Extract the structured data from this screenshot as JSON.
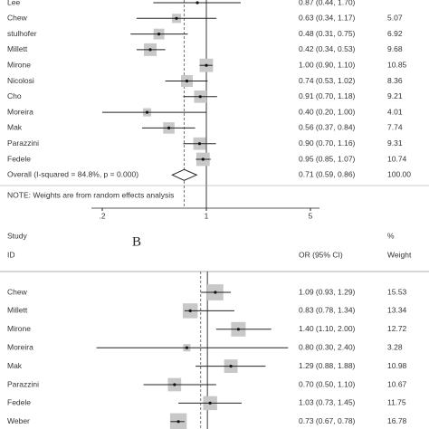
{
  "chart_data": [
    {
      "type": "forest",
      "categories": [
        "Lee",
        "Chew",
        "stulhofer",
        "Millett",
        "Mirone",
        "Nicolosi",
        "Cho",
        "Moreira",
        "Mak",
        "Parazzini",
        "Fedele"
      ],
      "values": [
        0.87,
        0.63,
        0.48,
        0.42,
        1.0,
        0.74,
        0.91,
        0.4,
        0.56,
        0.9,
        0.95
      ],
      "lower": [
        0.44,
        0.34,
        0.31,
        0.34,
        0.9,
        0.53,
        0.7,
        0.2,
        0.37,
        0.7,
        0.85
      ],
      "upper": [
        1.7,
        1.17,
        0.75,
        0.53,
        1.1,
        1.02,
        1.18,
        1.0,
        0.84,
        1.16,
        1.07
      ],
      "value_labels": [
        "0.87 (0.44, 1.70)",
        "0.63 (0.34, 1.17)",
        "0.48 (0.31, 0.75)",
        "0.42 (0.34, 0.53)",
        "1.00 (0.90, 1.10)",
        "0.74 (0.53, 1.02)",
        "0.91 (0.70, 1.18)",
        "0.40 (0.20, 1.00)",
        "0.56 (0.37, 0.84)",
        "0.90 (0.70, 1.16)",
        "0.95 (0.85, 1.07)"
      ],
      "weights": [
        null,
        5.07,
        6.92,
        9.68,
        10.85,
        8.36,
        9.21,
        4.01,
        7.74,
        9.31,
        10.74
      ],
      "overall": {
        "label": "Overall  (I-squared = 84.8%, p = 0.000)",
        "value": 0.71,
        "lower": 0.59,
        "upper": 0.86,
        "value_label": "0.71 (0.59, 0.86)",
        "weight": {
          "value": 100,
          "label": "100.00"
        }
      },
      "note": "NOTE: Weights are from random effects analysis",
      "log_scale": true,
      "xlim": [
        0.2,
        5
      ],
      "xticks": [
        {
          "value": 0.2,
          "label": ".2"
        },
        1,
        5
      ],
      "color": "#c8c8c8"
    },
    {
      "type": "forest",
      "panel_label": "B",
      "headers": {
        "study": "Study",
        "id": "ID",
        "estimate": "OR (95% CI)",
        "percent": "%",
        "weight": "Weight"
      },
      "categories": [
        "Chew",
        "Millett",
        "Mirone",
        "Moreira",
        "Mak",
        "Parazzini",
        "Fedele",
        "Weber"
      ],
      "values": [
        1.09,
        0.83,
        1.4,
        0.8,
        1.29,
        0.7,
        1.03,
        0.73
      ],
      "lower": [
        0.93,
        0.78,
        1.1,
        0.3,
        0.88,
        0.5,
        0.73,
        0.67
      ],
      "upper": [
        1.29,
        1.34,
        2.0,
        2.4,
        1.88,
        1.1,
        1.45,
        0.78
      ],
      "value_labels": [
        "1.09 (0.93, 1.29)",
        "0.83 (0.78, 1.34)",
        "1.40 (1.10, 2.00)",
        "0.80 (0.30, 2.40)",
        "1.29 (0.88, 1.88)",
        "0.70 (0.50, 1.10)",
        "1.03 (0.73, 1.45)",
        "0.73 (0.67, 0.78)"
      ],
      "weights": [
        15.53,
        13.34,
        12.72,
        3.28,
        10.98,
        10.67,
        11.75,
        16.78
      ],
      "pooled": 0.93,
      "log_scale": true,
      "xlim": [
        0.25,
        3
      ],
      "color": "#c8c8c8"
    }
  ]
}
